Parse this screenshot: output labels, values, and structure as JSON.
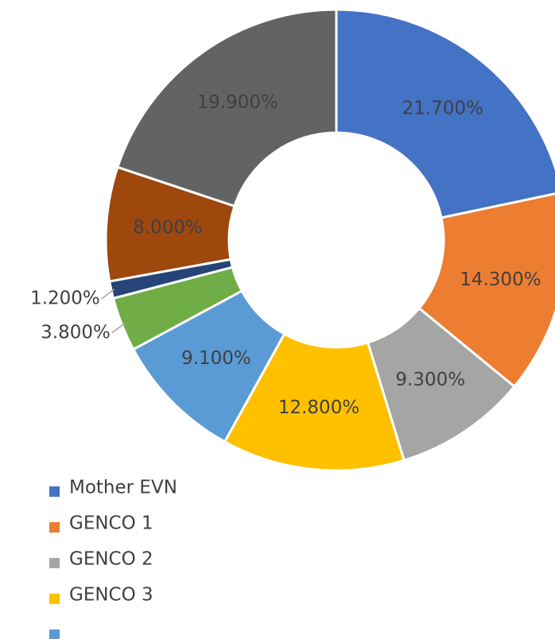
{
  "chart_data": {
    "type": "donut",
    "categories": [
      "Mother EVN",
      "GENCO 1",
      "GENCO 2",
      "GENCO 3",
      null,
      null,
      null,
      null,
      null
    ],
    "values": [
      21.7,
      14.3,
      9.3,
      12.8,
      9.1,
      3.8,
      1.2,
      8.0,
      19.9
    ],
    "value_labels": [
      "21.700%",
      "14.300%",
      "9.300%",
      "12.800%",
      "9.100%",
      "3.800%",
      "1.200%",
      "8.000%",
      "19.900%"
    ],
    "colors": [
      "#4472c4",
      "#ed7d31",
      "#a5a5a5",
      "#ffc000",
      "#5b9bd5",
      "#70ad47",
      "#264478",
      "#9e480e",
      "#636363"
    ],
    "legend": "bottom-left"
  }
}
